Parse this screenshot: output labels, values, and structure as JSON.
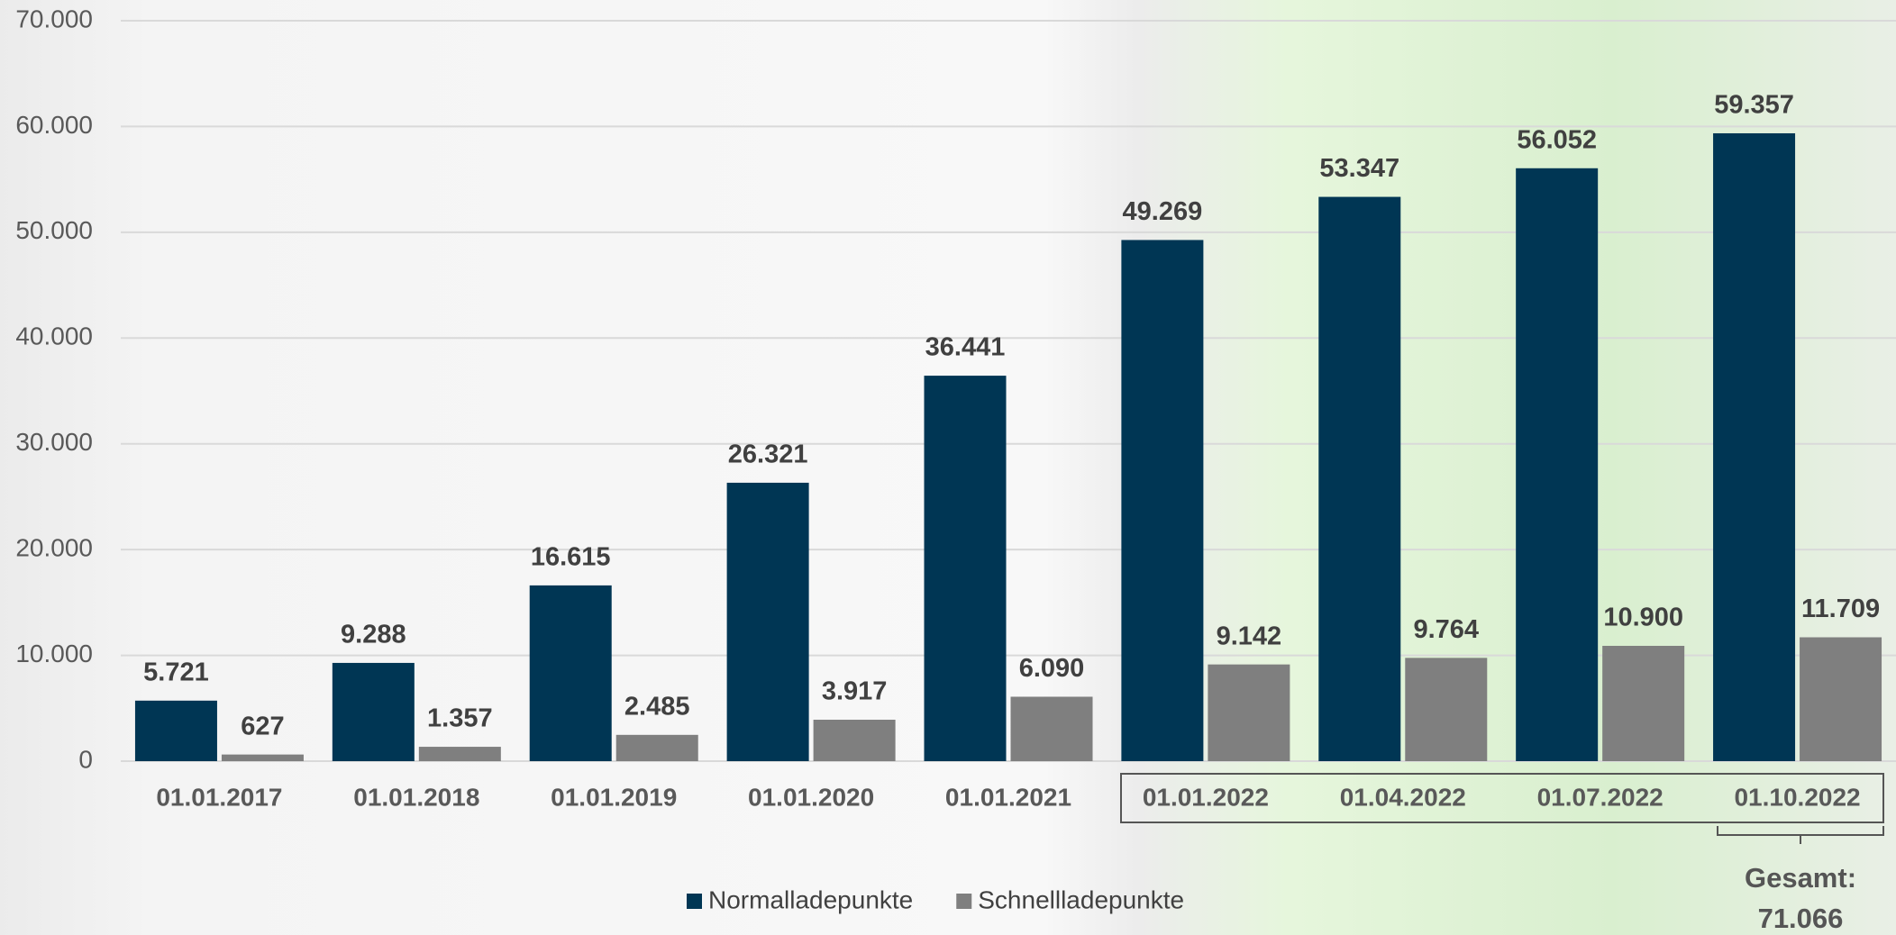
{
  "chart_data": {
    "type": "bar",
    "categories": [
      "01.01.2017",
      "01.01.2018",
      "01.01.2019",
      "01.01.2020",
      "01.01.2021",
      "01.01.2022",
      "01.04.2022",
      "01.07.2022",
      "01.10.2022"
    ],
    "series": [
      {
        "name": "Normalladepunkte",
        "color": "#003654",
        "values": [
          5721,
          9288,
          16615,
          26321,
          36441,
          49269,
          53347,
          56052,
          59357
        ],
        "value_labels": [
          "5.721",
          "9.288",
          "16.615",
          "26.321",
          "36.441",
          "49.269",
          "53.347",
          "56.052",
          "59.357"
        ]
      },
      {
        "name": "Schnellladepunkte",
        "color": "#7f7f7f",
        "values": [
          627,
          1357,
          2485,
          3917,
          6090,
          9142,
          9764,
          10900,
          11709
        ],
        "value_labels": [
          "627",
          "1.357",
          "2.485",
          "3.917",
          "6.090",
          "9.142",
          "9.764",
          "10.900",
          "11.709"
        ]
      }
    ],
    "ylim": [
      0,
      70000
    ],
    "yticks": [
      0,
      {
        "value": 10000,
        "label": "10.000"
      },
      {
        "value": 20000,
        "label": "20.000"
      },
      {
        "value": 30000,
        "label": "30.000"
      },
      {
        "value": 40000,
        "label": "40.000"
      },
      {
        "value": 50000,
        "label": "50.000"
      },
      {
        "value": 60000,
        "label": "60.000"
      },
      {
        "value": 70000,
        "label": "70.000"
      }
    ],
    "grid": true,
    "legend": "bottom",
    "annotation": [
      "Gesamt:",
      "71.066"
    ]
  }
}
